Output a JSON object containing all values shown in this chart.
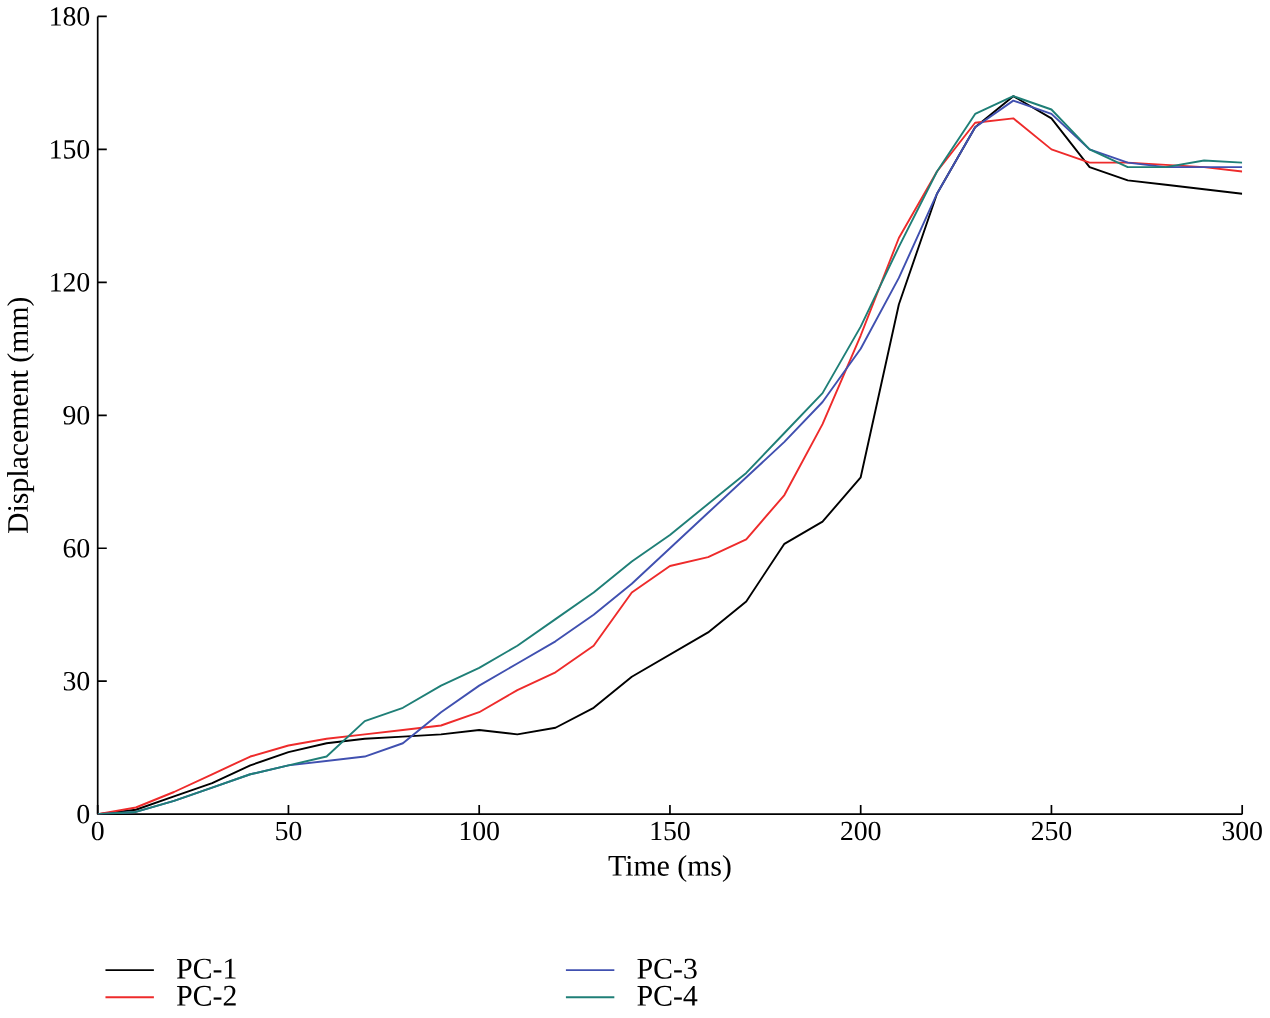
{
  "chart_data": {
    "type": "line",
    "xlabel": "Time (ms)",
    "ylabel": "Displacement (mm)",
    "xlim": [
      0,
      300
    ],
    "ylim": [
      0,
      180
    ],
    "xticks": [
      0,
      50,
      100,
      150,
      200,
      250,
      300
    ],
    "yticks": [
      0,
      30,
      60,
      90,
      120,
      150,
      180
    ],
    "grid": false,
    "legend": "bottom",
    "marker": "none",
    "line_style": "solid",
    "x": [
      0,
      10,
      20,
      30,
      40,
      50,
      60,
      70,
      80,
      90,
      100,
      110,
      120,
      130,
      140,
      150,
      160,
      170,
      180,
      190,
      200,
      210,
      220,
      230,
      240,
      250,
      260,
      270,
      280,
      290,
      300
    ],
    "series": [
      {
        "name": "PC-1",
        "color": "#000000",
        "values": [
          0,
          1,
          4,
          7,
          11,
          14,
          16,
          17,
          17.5,
          18,
          19,
          18,
          19.5,
          24,
          31,
          36,
          41,
          48,
          61,
          66,
          76,
          115,
          140,
          155,
          162,
          157,
          146,
          143,
          142,
          141,
          140
        ]
      },
      {
        "name": "PC-2",
        "color": "#ee2b2b",
        "values": [
          0,
          1.5,
          5,
          9,
          13,
          15.5,
          17,
          18,
          19,
          20,
          23,
          28,
          32,
          38,
          50,
          56,
          58,
          62,
          72,
          88,
          108,
          130,
          145,
          156,
          157,
          150,
          147,
          147,
          146.5,
          146,
          145
        ]
      },
      {
        "name": "PC-3",
        "color": "#4050b0",
        "values": [
          0,
          0.5,
          3,
          6,
          9,
          11,
          12,
          13,
          16,
          23,
          29,
          34,
          39,
          45,
          52,
          60,
          68,
          76,
          84,
          93,
          105,
          121,
          140,
          155,
          161,
          158,
          150,
          147,
          146,
          146,
          146
        ]
      },
      {
        "name": "PC-4",
        "color": "#1f7f77",
        "values": [
          0,
          0.5,
          3,
          6,
          9,
          11,
          13,
          21,
          24,
          29,
          33,
          38,
          44,
          50,
          57,
          63,
          70,
          77,
          86,
          95,
          110,
          128,
          145,
          158,
          162,
          159,
          150,
          146,
          146,
          147.5,
          147
        ]
      }
    ]
  }
}
